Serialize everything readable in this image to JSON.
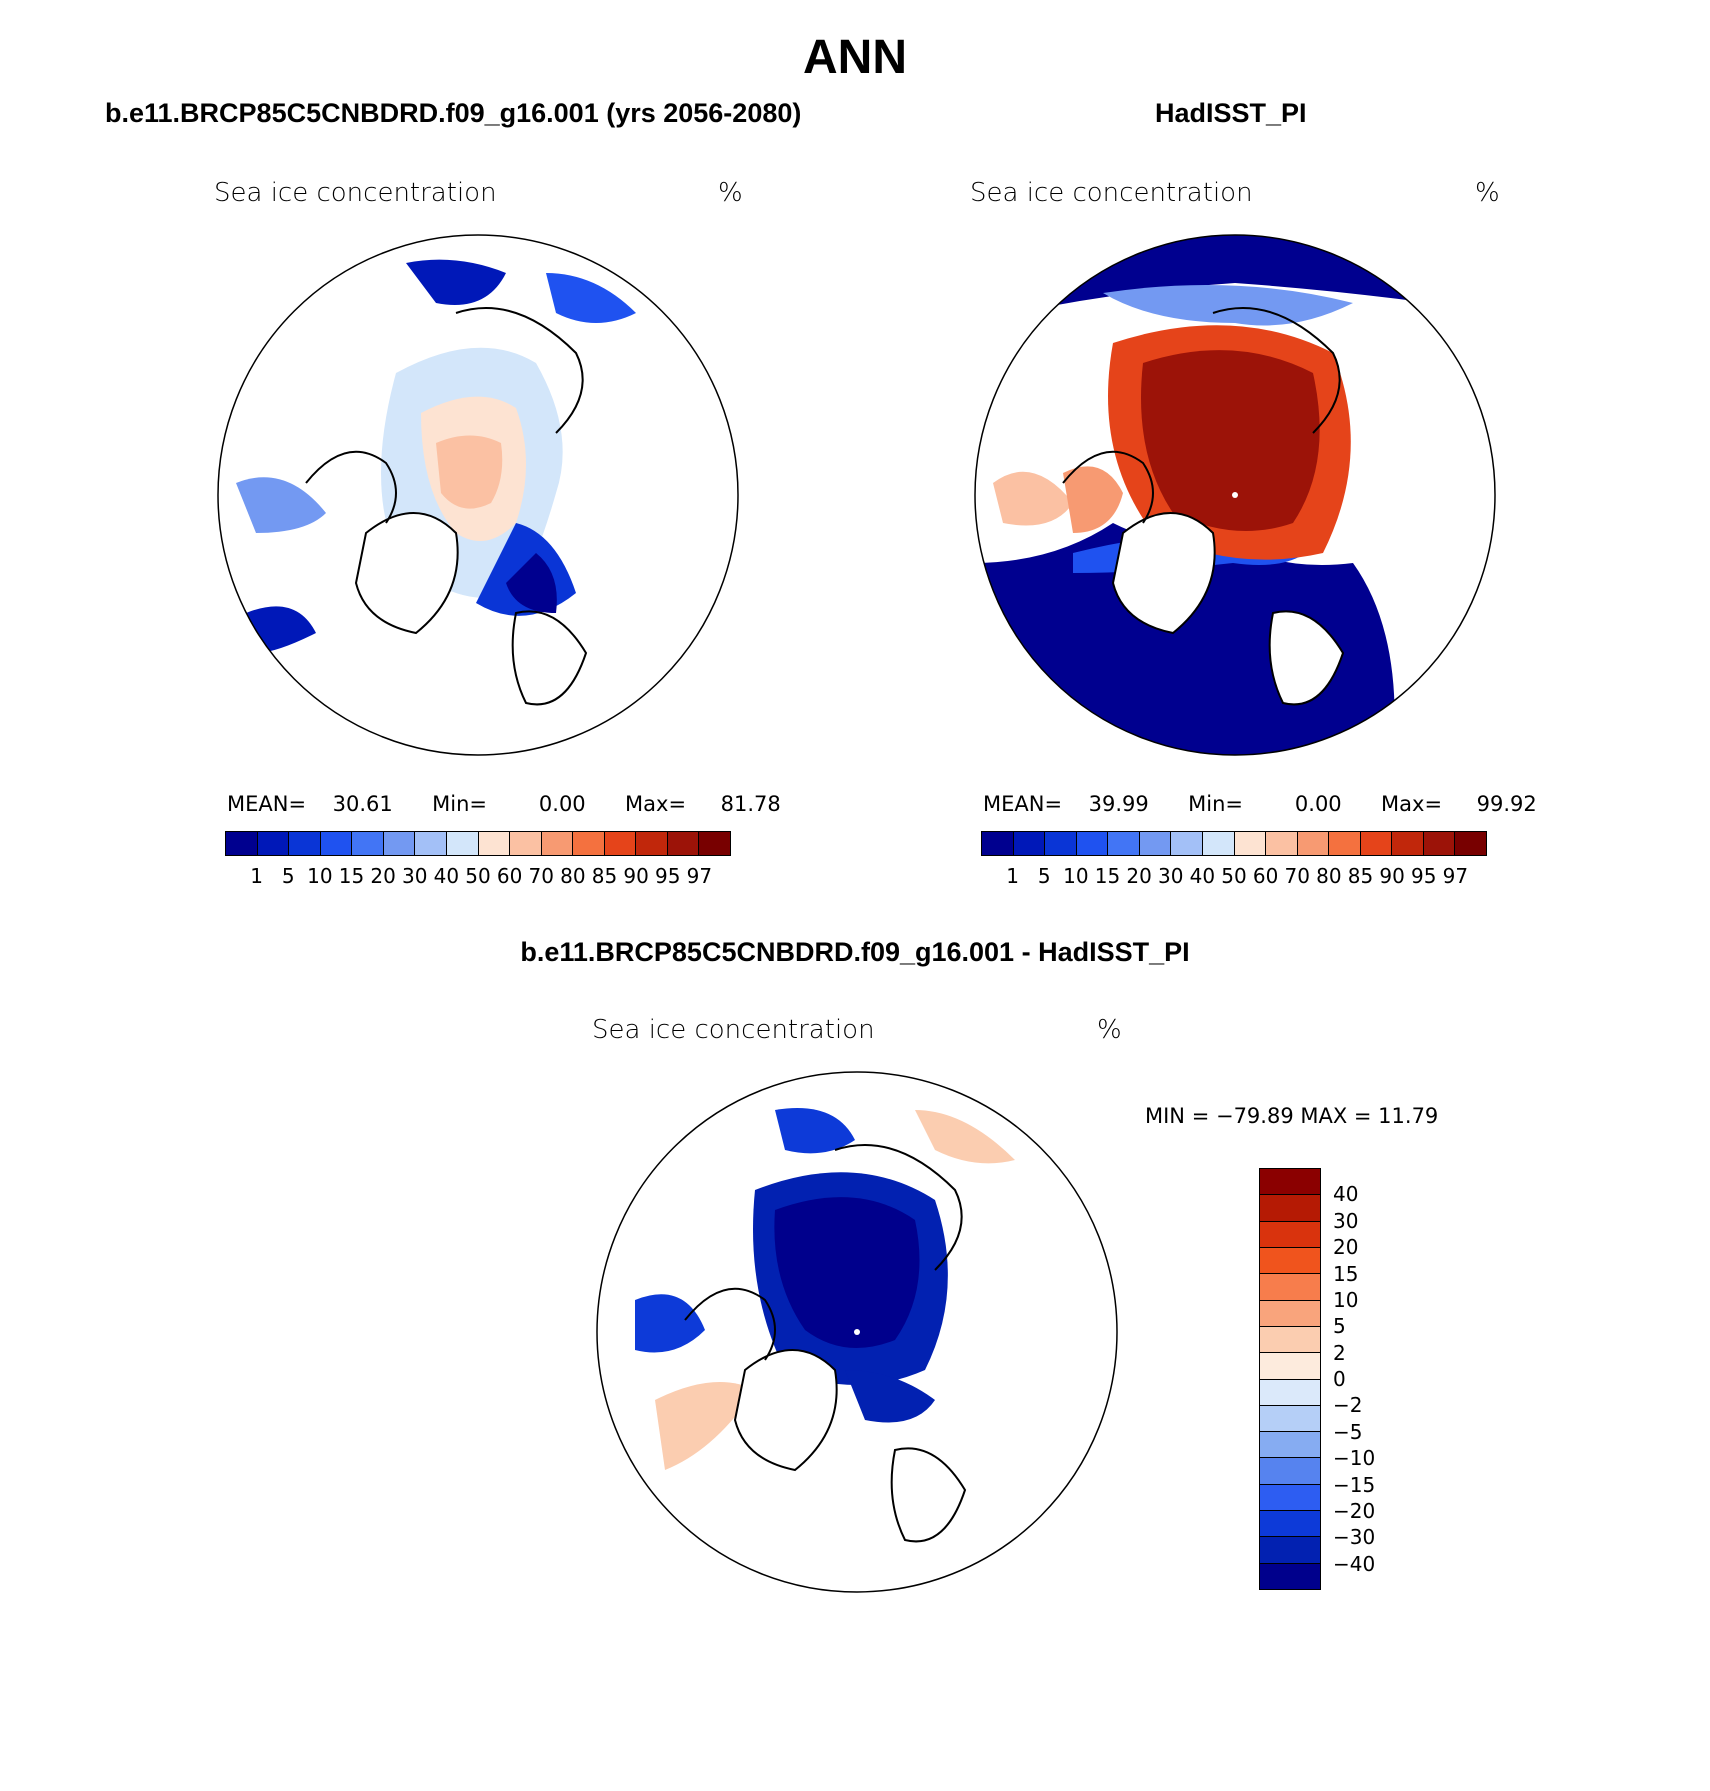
{
  "title": "ANN",
  "panels": {
    "model": {
      "subtitle": "b.e11.BRCP85C5CNBDRD.f09_g16.001 (yrs 2056-2080)",
      "label_left": "Sea ice concentration",
      "label_right": "%",
      "stats": {
        "mean_label": "MEAN=",
        "mean": "30.61",
        "min_label": "Min=",
        "min": "0.00",
        "max_label": "Max=",
        "max": "81.78"
      }
    },
    "obs": {
      "subtitle": "HadISST_PI",
      "label_left": "Sea ice concentration",
      "label_right": "%",
      "stats": {
        "mean_label": "MEAN=",
        "mean": "39.99",
        "min_label": "Min=",
        "min": "0.00",
        "max_label": "Max=",
        "max": "99.92"
      }
    },
    "diff": {
      "subtitle": "b.e11.BRCP85C5CNBDRD.f09_g16.001 - HadISST_PI",
      "label_left": "Sea ice concentration",
      "label_right": "%",
      "stats_text": "MIN = −79.89 MAX =   11.79"
    }
  },
  "colorbar_abs": {
    "levels": [
      "1",
      "5",
      "10",
      "15",
      "20",
      "30",
      "40",
      "50",
      "60",
      "70",
      "80",
      "85",
      "90",
      "95",
      "97"
    ],
    "colors": [
      "#00008f",
      "#0018b8",
      "#0a35d6",
      "#1f52f0",
      "#4275f5",
      "#7399f2",
      "#a3c0f7",
      "#d3e6fa",
      "#fde3d2",
      "#fbc1a3",
      "#f79a72",
      "#f4713f",
      "#e5441a",
      "#c1270b",
      "#9c1308",
      "#780000"
    ]
  },
  "colorbar_diff": {
    "levels": [
      "40",
      "30",
      "20",
      "15",
      "10",
      "5",
      "2",
      "0",
      "−2",
      "−5",
      "−10",
      "−15",
      "−20",
      "−30",
      "−40"
    ],
    "colors": [
      "#8b0000",
      "#b51a04",
      "#d9330d",
      "#f0541d",
      "#f77d4c",
      "#f9a47c",
      "#fbcdb0",
      "#fdebdd",
      "#dbe9fa",
      "#b5cff7",
      "#86acf2",
      "#5683ef",
      "#2d5df2",
      "#0d3ad8",
      "#0221b1",
      "#00008c"
    ]
  },
  "map_layers": {
    "ice_model": "blue-tones-pale-arctic",
    "ice_obs": "red-arctic-blue-margins",
    "ice_diff": "blue-dominant-decline"
  }
}
